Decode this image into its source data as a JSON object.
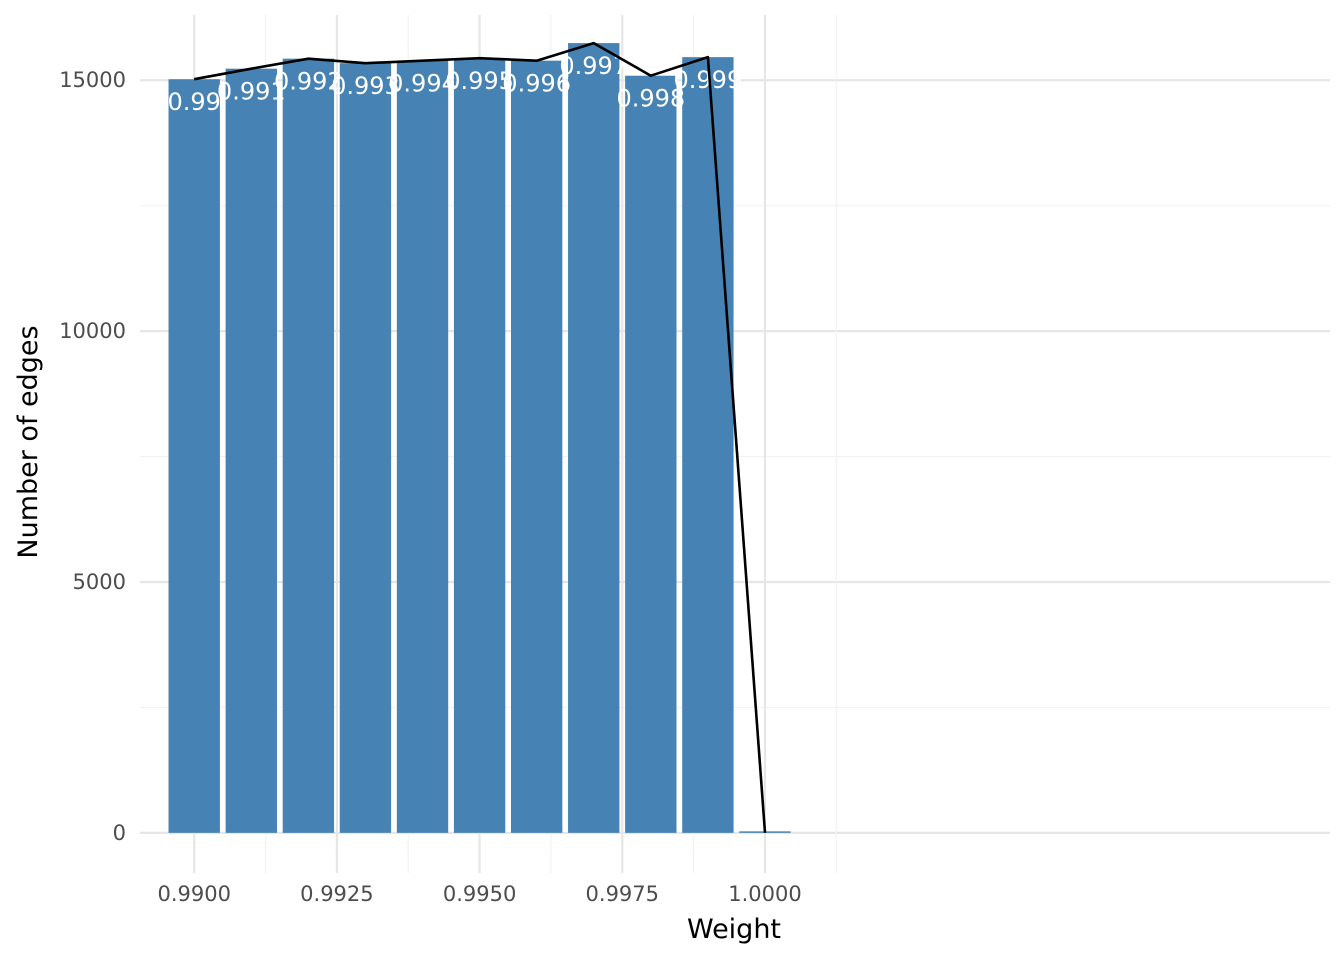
{
  "chart_data": {
    "type": "bar",
    "title": "",
    "xlabel": "Weight",
    "ylabel": "Number of edges",
    "x": [
      0.99,
      0.991,
      0.992,
      0.993,
      0.994,
      0.995,
      0.996,
      0.997,
      0.998,
      0.999,
      1.0
    ],
    "values": [
      15020,
      15230,
      15430,
      15340,
      15390,
      15440,
      15390,
      15740,
      15090,
      15460,
      30
    ],
    "data_labels": [
      "0.99",
      "0.991",
      "0.992",
      "0.993",
      "0.994",
      "0.995",
      "0.996",
      "0.997",
      "0.998",
      "0.999",
      ""
    ],
    "overlay_line": {
      "x": [
        0.99,
        0.991,
        0.992,
        0.993,
        0.994,
        0.995,
        0.996,
        0.997,
        0.998,
        0.999,
        1.0
      ],
      "y": [
        15020,
        15230,
        15430,
        15340,
        15390,
        15440,
        15390,
        15740,
        15090,
        15460,
        0
      ],
      "color": "#000000"
    },
    "xlim": [
      0.98905,
      1.0099
    ],
    "ylim": [
      -800,
      16300
    ],
    "x_ticks": [
      0.99,
      0.9925,
      0.995,
      0.9975,
      1.0
    ],
    "x_tick_labels": [
      "0.9900",
      "0.9925",
      "0.9950",
      "0.9975",
      "1.0000"
    ],
    "y_ticks": [
      0,
      5000,
      10000,
      15000
    ],
    "y_tick_labels": [
      "0",
      "5000",
      "10000",
      "15000"
    ],
    "bar_color": "#4682b4",
    "label_color": "#ffffff",
    "grid": true,
    "legend": "none"
  }
}
